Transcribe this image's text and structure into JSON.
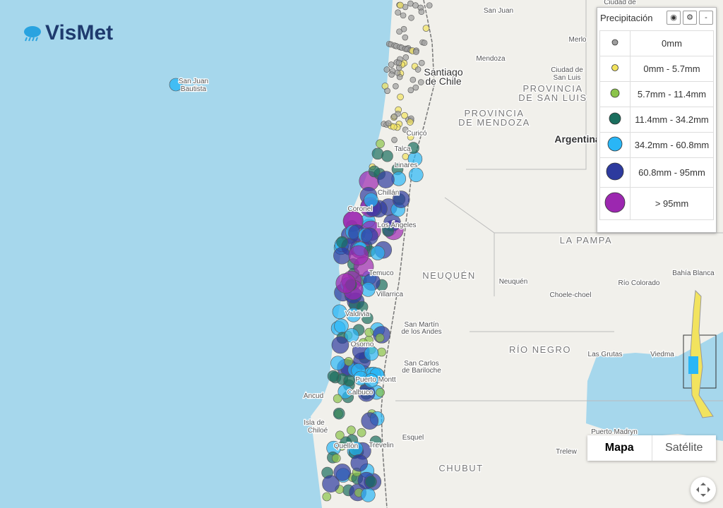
{
  "header": {
    "logo": "VisMet"
  },
  "legend": {
    "title": "Precipitación",
    "items": [
      "0mm",
      "0mm - 5.7mm",
      "5.7mm - 11.4mm",
      "11.4mm - 34.2mm",
      "34.2mm - 60.8mm",
      "60.8mm - 95mm",
      "> 95mm"
    ]
  },
  "map_type": {
    "buttons": [
      "Mapa",
      "Satélite"
    ]
  },
  "labels": [
    "San Juan",
    "Ciudad de",
    "Merlo",
    "Mendoza",
    "Santiago",
    "de Chile",
    "Ciudad de",
    "San Luis",
    "PROVINCIA",
    "DE SAN LUIS",
    "PROVINCIA",
    "DE MENDOZA",
    "Argentina",
    "Curicó",
    "Talca",
    "Linares",
    "Chillán",
    "Coronel",
    "Los Ángeles",
    "LA PAMPA",
    "NEUQUÉN",
    "Neuquén",
    "Choele-choel",
    "Bahía Blanca",
    "Río Colorado",
    "Temuco",
    "Villarrica",
    "Valdivia",
    "San Martín",
    "de los Andes",
    "RÍO NEGRO",
    "Las Grutas",
    "Viedma",
    "Osorno",
    "San Carlos",
    "de Bariloche",
    "Puerto Montt",
    "Calbuco",
    "Ancud",
    "Isla de",
    "Chiloé",
    "Quellón",
    "Esquel",
    "Trevelin",
    "Puerto Madryn",
    "Trelew",
    "CHUBUT",
    "San Juan",
    "Bautista"
  ]
}
